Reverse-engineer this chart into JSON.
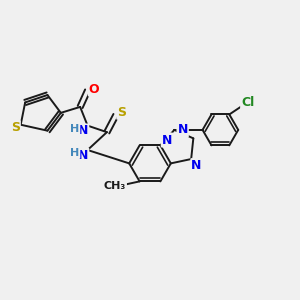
{
  "background_color": "#f0f0f0",
  "bond_color": "#1a1a1a",
  "bond_width": 1.4,
  "atom_colors": {
    "S": "#b8a000",
    "O": "#ff0000",
    "N": "#0000ee",
    "H": "#4488bb",
    "Cl": "#228822",
    "C": "#1a1a1a",
    "CH3": "#1a1a1a"
  },
  "fig_w": 3.0,
  "fig_h": 3.0,
  "dpi": 100
}
